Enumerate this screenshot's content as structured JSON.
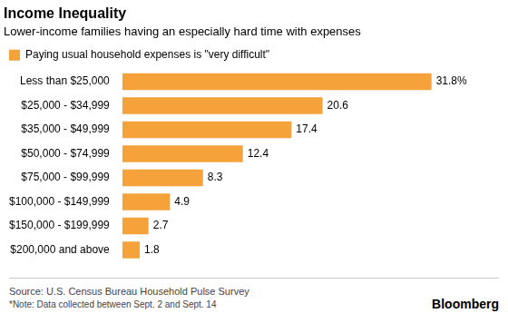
{
  "chart_data": {
    "type": "bar",
    "orientation": "horizontal",
    "title": "Income Inequality",
    "subtitle": "Lower-income families having an especially hard time with expenses",
    "categories": [
      "Less than $25,000",
      "$25,000 - $34,999",
      "$35,000 - $49,999",
      "$50,000 - $74,999",
      "$75,000 - $99,999",
      "$100,000 - $149,999",
      "$150,000 - $199,999",
      "$200,000 and above"
    ],
    "series": [
      {
        "name": "Paying usual household expenses is \"very difficult\"",
        "color": "#f5a23a",
        "values": [
          31.8,
          20.6,
          17.4,
          12.4,
          8.3,
          4.9,
          2.7,
          1.8
        ],
        "value_labels": [
          "31.8%",
          "20.6",
          "17.4",
          "12.4",
          "8.3",
          "4.9",
          "2.7",
          "1.8"
        ]
      }
    ],
    "legend": "top-left",
    "data_labels": true,
    "tick_labels": "y",
    "grid": false,
    "source": "Source: U.S. Census Bureau Household Pulse Survey",
    "note": "*Note: Data collected between Sept. 2 and Sept. 14",
    "credit": "Bloomberg"
  }
}
